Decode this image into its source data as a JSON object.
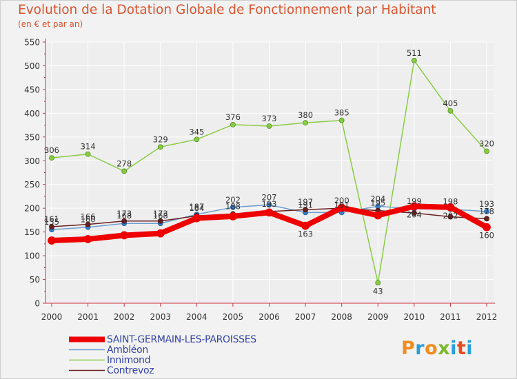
{
  "title": "Evolution de la Dotation Globale de Fonctionnement par Habitant",
  "subtitle": "(en € et par an)",
  "logo": {
    "text": "Proxiti",
    "colors": [
      "#f28c1e",
      "#2a9fd8",
      "#f28c1e",
      "#7ab829",
      "#2a9fd8",
      "#e84b1c",
      "#2a9fd8"
    ]
  },
  "colors": {
    "title": "#d9542f",
    "axis": "#cc3344",
    "grid": "#ffffff",
    "saint_germain": "#ee0000",
    "ambleon": "#6f9fd0",
    "innimond": "#88cc44",
    "contrevoz": "#6b2020"
  },
  "chart_data": {
    "type": "line",
    "title": "Evolution de la Dotation Globale de Fonctionnement par Habitant",
    "subtitle": "(en € et par an)",
    "x": [
      "2000",
      "2001",
      "2002",
      "2003",
      "2004",
      "2005",
      "2006",
      "2007",
      "2008",
      "2009",
      "2010",
      "2011",
      "2012"
    ],
    "ylim": [
      0,
      550
    ],
    "yticks": [
      0,
      50,
      100,
      150,
      200,
      250,
      300,
      350,
      400,
      450,
      500,
      550
    ],
    "grid": true,
    "legend_position": "bottom-left",
    "series": [
      {
        "name": "SAINT-GERMAIN-LES-PAROISSES",
        "key": "saint_germain",
        "values": [
          132,
          135,
          143,
          147,
          179,
          183,
          191,
          163,
          201,
          185,
          204,
          202,
          160
        ],
        "labels": [
          false,
          false,
          false,
          false,
          false,
          false,
          false,
          true,
          false,
          false,
          true,
          true,
          true
        ]
      },
      {
        "name": "Ambléon",
        "key": "ambleon",
        "values": [
          155,
          160,
          168,
          168,
          187,
          202,
          207,
          191,
          191,
          204,
          199,
          198,
          193
        ],
        "labels": [
          true,
          true,
          true,
          true,
          true,
          true,
          true,
          true,
          true,
          true,
          true,
          true,
          true
        ]
      },
      {
        "name": "Innimond",
        "key": "innimond",
        "values": [
          306,
          314,
          278,
          329,
          345,
          376,
          373,
          380,
          385,
          43,
          511,
          405,
          320
        ],
        "labels": [
          true,
          true,
          true,
          true,
          true,
          true,
          true,
          true,
          true,
          true,
          true,
          true,
          true
        ]
      },
      {
        "name": "Contrevoz",
        "key": "contrevoz",
        "values": [
          161,
          166,
          173,
          173,
          184,
          188,
          193,
          197,
          200,
          195,
          190,
          182,
          178
        ],
        "labels": [
          true,
          true,
          true,
          true,
          true,
          true,
          true,
          true,
          true,
          true,
          false,
          false,
          true
        ]
      }
    ]
  }
}
